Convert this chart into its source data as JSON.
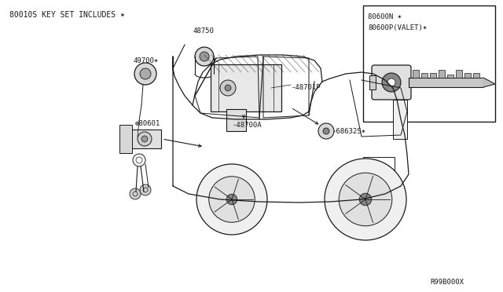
{
  "bg_color": "#f5f5f5",
  "line_color": "#1a1a1a",
  "text_color": "#1a1a1a",
  "fig_width": 6.4,
  "fig_height": 3.72,
  "dpi": 100,
  "part_number": "R99B000X",
  "header_text": "80010S KEY SET INCLUDES ✶",
  "inset_labels": [
    "80600N ✶",
    "80600P(VALET)✶"
  ],
  "label_48750": "48750",
  "label_49700": "49700✶",
  "label_48701P": "-48701P",
  "label_48700A": "-48700A",
  "label_68632S": "-68632S✶",
  "label_80601": "❆80601"
}
